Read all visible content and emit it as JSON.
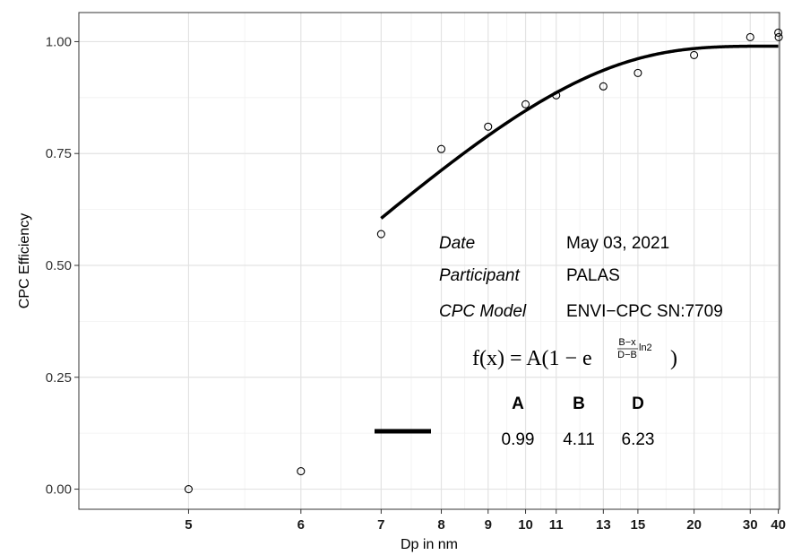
{
  "chart_data": {
    "type": "scatter",
    "xlabel": "Dp in nm",
    "ylabel": "CPC Efficiency",
    "xlim": [
      4.3,
      40.6
    ],
    "ylim": [
      -0.045,
      1.065
    ],
    "x_ticks": [
      5,
      6,
      7,
      8,
      9,
      10,
      11,
      13,
      15,
      20,
      30,
      40
    ],
    "x_tick_labels": [
      "5",
      "6",
      "7",
      "8",
      "9",
      "10",
      "11",
      "13",
      "15",
      "20",
      "30",
      "40"
    ],
    "y_ticks": [
      0.0,
      0.25,
      0.5,
      0.75,
      1.0
    ],
    "y_tick_labels": [
      "0.00",
      "0.25",
      "0.50",
      "0.75",
      "1.00"
    ],
    "grid": true,
    "points": [
      {
        "x": 5,
        "y": 0.0
      },
      {
        "x": 6,
        "y": 0.04
      },
      {
        "x": 7,
        "y": 0.57
      },
      {
        "x": 8,
        "y": 0.76
      },
      {
        "x": 9,
        "y": 0.81
      },
      {
        "x": 10,
        "y": 0.86
      },
      {
        "x": 11,
        "y": 0.88
      },
      {
        "x": 13,
        "y": 0.9
      },
      {
        "x": 15,
        "y": 0.93
      },
      {
        "x": 20,
        "y": 0.97
      },
      {
        "x": 30,
        "y": 1.01
      },
      {
        "x": 40,
        "y": 1.02
      },
      {
        "x": 40.2,
        "y": 1.01
      }
    ],
    "fit": {
      "A": 0.99,
      "B": 4.11,
      "D": 6.23,
      "x_start": 7,
      "x_end": 40
    },
    "annotation": {
      "date_label": "Date",
      "date_value": "May 03, 2021",
      "participant_label": "Participant",
      "participant_value": "PALAS",
      "model_label": "CPC Model",
      "model_value": "ENVI−CPC SN:7709",
      "formula_lhs": "f(x) = A(1 − e",
      "formula_exp_num": "B−x",
      "formula_exp_den": "D−B",
      "formula_exp_tail": "ln2",
      "formula_close": ")",
      "param_heads": [
        "A",
        "B",
        "D"
      ],
      "param_values": [
        "0.99",
        "4.11",
        "6.23"
      ]
    }
  }
}
